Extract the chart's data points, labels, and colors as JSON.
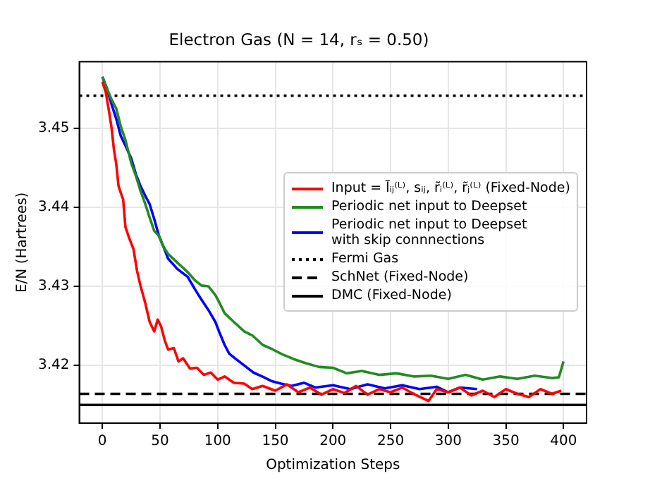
{
  "chart_data": {
    "type": "line",
    "title": "Electron Gas (N = 14, rₛ = 0.50)",
    "xlabel": "Optimization Steps",
    "ylabel": "E/N (Hartrees)",
    "xlim": [
      -20,
      420
    ],
    "xticks": [
      0,
      50,
      100,
      150,
      200,
      250,
      300,
      350,
      400
    ],
    "ylim": [
      3.4127,
      3.4584
    ],
    "yticks": [
      3.42,
      3.43,
      3.44,
      3.45
    ],
    "grid": true,
    "legend": "right",
    "line_style": "solid",
    "marker": "none",
    "series": [
      {
        "name": "Input = l̃ᵢⱼ⁽ᴸ⁾, sᵢⱼ, r̃ᵢ⁽ᴸ⁾, r̃ⱼ⁽ᴸ⁾ (Fixed-Node)",
        "color": "#ff0000",
        "x": [
          0,
          3,
          6,
          8,
          10,
          12,
          14,
          16,
          18,
          20,
          23,
          27,
          30,
          33,
          37,
          41,
          45,
          48,
          51,
          54,
          57,
          62,
          66,
          70,
          76,
          82,
          88,
          94,
          100,
          106,
          114,
          123,
          130,
          139,
          150,
          160,
          170,
          180,
          190,
          200,
          210,
          220,
          230,
          240,
          250,
          260,
          270,
          283,
          290,
          300,
          310,
          320,
          330,
          340,
          350,
          360,
          370,
          380,
          390,
          398
        ],
        "values": [
          3.4559,
          3.4545,
          3.4519,
          3.45,
          3.4473,
          3.4455,
          3.4427,
          3.4418,
          3.441,
          3.4375,
          3.4362,
          3.4347,
          3.432,
          3.4301,
          3.428,
          3.4255,
          3.4243,
          3.4258,
          3.4249,
          3.4232,
          3.422,
          3.4222,
          3.4205,
          3.4209,
          3.4196,
          3.4197,
          3.4188,
          3.4191,
          3.4182,
          3.4186,
          3.4178,
          3.4177,
          3.417,
          3.4174,
          3.4168,
          3.4176,
          3.4166,
          3.4172,
          3.4163,
          3.417,
          3.4165,
          3.4174,
          3.4163,
          3.417,
          3.4166,
          3.4172,
          3.4164,
          3.4155,
          3.417,
          3.4166,
          3.4172,
          3.4162,
          3.4168,
          3.416,
          3.417,
          3.4164,
          3.416,
          3.417,
          3.4164,
          3.4168
        ]
      },
      {
        "name": "Periodic net input to Deepset",
        "color": "#228b22",
        "x": [
          0,
          4,
          8,
          12,
          16,
          20,
          25,
          29,
          33,
          37,
          41,
          45,
          49,
          53,
          57,
          65,
          74,
          80,
          86,
          92,
          98,
          102,
          106,
          114,
          123,
          130,
          139,
          148,
          156,
          166,
          176,
          188,
          200,
          212,
          225,
          240,
          255,
          270,
          285,
          300,
          315,
          330,
          345,
          360,
          375,
          390,
          396,
          400
        ],
        "values": [
          3.4565,
          3.455,
          3.4536,
          3.4525,
          3.4502,
          3.4485,
          3.4456,
          3.444,
          3.4421,
          3.4405,
          3.4387,
          3.437,
          3.4364,
          3.435,
          3.4341,
          3.433,
          3.4318,
          3.4308,
          3.4301,
          3.43,
          3.4289,
          3.4278,
          3.4266,
          3.4255,
          3.4243,
          3.4238,
          3.4226,
          3.422,
          3.4214,
          3.4208,
          3.4203,
          3.4198,
          3.4197,
          3.419,
          3.4193,
          3.4188,
          3.419,
          3.4186,
          3.4187,
          3.4183,
          3.4188,
          3.4182,
          3.4186,
          3.4183,
          3.4187,
          3.4184,
          3.4185,
          3.4205
        ]
      },
      {
        "name": "Periodic net input to Deepset\nwith skip connnections",
        "color": "#0000ff",
        "x": [
          0,
          4,
          8,
          12,
          16,
          20,
          25,
          29,
          33,
          37,
          41,
          45,
          49,
          53,
          57,
          65,
          74,
          80,
          86,
          92,
          98,
          102,
          106,
          110,
          115,
          123,
          131,
          140,
          147,
          155,
          164,
          175,
          185,
          200,
          215,
          230,
          245,
          260,
          275,
          290,
          300,
          310,
          325
        ],
        "values": [
          3.4565,
          3.455,
          3.453,
          3.4512,
          3.449,
          3.4478,
          3.4462,
          3.4442,
          3.4427,
          3.4415,
          3.4404,
          3.4385,
          3.4364,
          3.435,
          3.4335,
          3.4322,
          3.4312,
          3.4297,
          3.4283,
          3.427,
          3.4255,
          3.424,
          3.4226,
          3.4215,
          3.4209,
          3.42,
          3.4191,
          3.4185,
          3.418,
          3.4177,
          3.4174,
          3.4178,
          3.4172,
          3.4175,
          3.417,
          3.4176,
          3.4171,
          3.4175,
          3.417,
          3.4173,
          3.4166,
          3.4172,
          3.417
        ]
      }
    ],
    "ref_lines": [
      {
        "axis": "y",
        "value": 3.4541,
        "label": "Fermi Gas",
        "color": "#000000",
        "line_style": "dotted"
      },
      {
        "axis": "y",
        "value": 3.4164,
        "label": "SchNet (Fixed-Node)",
        "color": "#000000",
        "line_style": "dashed"
      },
      {
        "axis": "y",
        "value": 3.415,
        "label": "DMC (Fixed-Node)",
        "color": "#000000",
        "line_style": "solid"
      }
    ]
  }
}
